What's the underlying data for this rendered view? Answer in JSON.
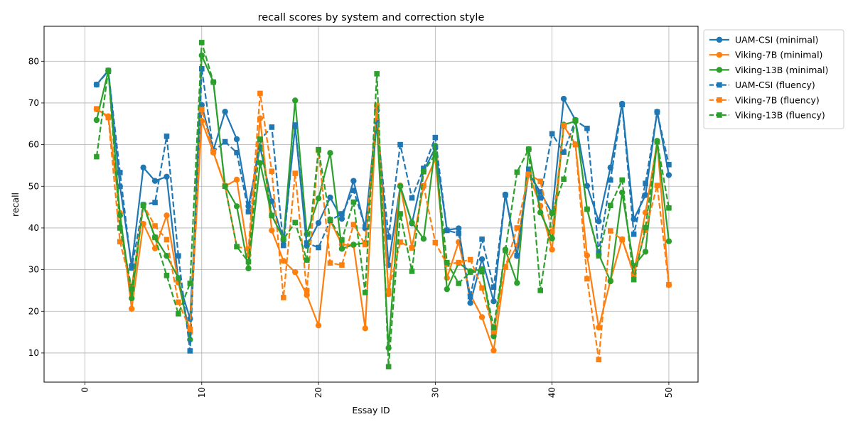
{
  "chart_data": {
    "type": "line",
    "title": "recall scores by system and correction style",
    "xlabel": "Essay ID",
    "ylabel": "recall",
    "xlim": [
      -3.5,
      52.5
    ],
    "ylim": [
      3.0,
      88.4
    ],
    "xticks": [
      0,
      10,
      20,
      30,
      40,
      50
    ],
    "yticks": [
      10,
      20,
      30,
      40,
      50,
      60,
      70,
      80
    ],
    "xtick_labels": [
      "0",
      "10",
      "20",
      "30",
      "40",
      "50"
    ],
    "ytick_labels": [
      "10",
      "20",
      "30",
      "40",
      "50",
      "60",
      "70",
      "80"
    ],
    "x_tick_rotation": 90,
    "grid": true,
    "legend_placement": "outside upper right",
    "x": [
      1,
      2,
      3,
      4,
      5,
      6,
      7,
      8,
      9,
      10,
      11,
      12,
      13,
      14,
      15,
      16,
      17,
      18,
      19,
      20,
      21,
      22,
      23,
      24,
      25,
      26,
      27,
      28,
      29,
      30,
      31,
      32,
      33,
      34,
      35,
      36,
      37,
      38,
      39,
      40,
      41,
      42,
      43,
      44,
      45,
      46,
      47,
      48,
      49,
      50
    ],
    "series": [
      {
        "name": "UAM-CSI (minimal)",
        "color": "#1f77b4",
        "linestyle": "solid",
        "marker": "circle",
        "values": [
          74.4,
          77.8,
          50.0,
          31.0,
          54.5,
          51.3,
          52.3,
          27.3,
          18.2,
          69.5,
          58.7,
          67.9,
          61.3,
          45.2,
          59.4,
          46.4,
          37.0,
          64.3,
          35.7,
          41.2,
          47.3,
          42.2,
          51.3,
          39.9,
          68.2,
          31.1,
          50.1,
          41.1,
          53.7,
          59.2,
          39.5,
          39.9,
          22.0,
          32.5,
          22.4,
          48.0,
          33.3,
          53.2,
          48.6,
          43.5,
          71.0,
          65.9,
          50.1,
          41.6,
          54.5,
          69.8,
          42.1,
          47.9,
          67.9,
          52.7
        ]
      },
      {
        "name": "Viking-7B (minimal)",
        "color": "#ff7f0e",
        "linestyle": "solid",
        "marker": "circle",
        "values": [
          68.5,
          66.8,
          43.6,
          20.6,
          41.0,
          35.1,
          43.0,
          26.9,
          14.9,
          65.7,
          58.1,
          50.0,
          51.6,
          33.5,
          66.3,
          39.4,
          32.1,
          29.4,
          23.9,
          16.6,
          41.8,
          36.0,
          35.9,
          15.9,
          69.4,
          24.1,
          50.2,
          35.3,
          50.1,
          56.5,
          28.0,
          36.6,
          24.0,
          18.6,
          10.6,
          30.7,
          35.7,
          53.0,
          45.3,
          34.8,
          64.5,
          60.1,
          33.4,
          16.1,
          27.4,
          37.3,
          29.1,
          43.7,
          60.6,
          26.3
        ]
      },
      {
        "name": "Viking-13B (minimal)",
        "color": "#2ca02c",
        "linestyle": "solid",
        "marker": "circle",
        "values": [
          65.9,
          77.7,
          43.0,
          23.1,
          45.6,
          37.8,
          33.3,
          28.0,
          13.2,
          81.4,
          75.0,
          50.1,
          45.2,
          30.3,
          55.6,
          43.0,
          37.4,
          70.6,
          38.5,
          47.1,
          58.0,
          35.0,
          36.0,
          36.4,
          65.3,
          11.2,
          50.0,
          41.3,
          37.4,
          59.7,
          25.3,
          31.6,
          29.6,
          30.1,
          14.0,
          34.8,
          26.8,
          58.9,
          43.7,
          37.5,
          64.8,
          65.6,
          44.5,
          33.7,
          27.2,
          48.5,
          30.9,
          34.3,
          60.9,
          36.8
        ]
      },
      {
        "name": "UAM-CSI (fluency)",
        "color": "#1f77b4",
        "linestyle": "dashed",
        "marker": "square",
        "values": [
          74.4,
          77.6,
          53.3,
          30.4,
          45.6,
          46.1,
          62.0,
          33.3,
          10.5,
          78.2,
          58.4,
          60.7,
          58.1,
          43.9,
          61.2,
          64.2,
          35.8,
          64.7,
          36.4,
          35.3,
          41.8,
          43.4,
          49.0,
          40.3,
          65.6,
          37.8,
          60.0,
          47.2,
          54.3,
          61.7,
          39.4,
          38.7,
          23.5,
          37.3,
          25.8,
          47.9,
          33.4,
          54.1,
          47.2,
          62.6,
          58.2,
          65.8,
          63.9,
          34.2,
          51.5,
          69.6,
          38.5,
          50.7,
          67.8,
          55.2
        ]
      },
      {
        "name": "Viking-7B (fluency)",
        "color": "#ff7f0e",
        "linestyle": "dashed",
        "marker": "square",
        "values": [
          68.6,
          66.5,
          36.7,
          25.5,
          45.5,
          40.5,
          37.2,
          22.2,
          15.7,
          68.4,
          58.3,
          50.1,
          35.5,
          35.0,
          72.3,
          53.6,
          23.3,
          53.1,
          25.0,
          58.6,
          31.6,
          31.1,
          40.8,
          36.0,
          69.3,
          24.9,
          36.6,
          35.2,
          50.1,
          36.5,
          31.3,
          31.7,
          32.4,
          25.6,
          15.1,
          30.6,
          40.0,
          52.9,
          51.2,
          39.2,
          64.6,
          60.0,
          27.8,
          8.4,
          39.3,
          37.2,
          28.8,
          39.4,
          50.2,
          26.4
        ]
      },
      {
        "name": "Viking-13B (fluency)",
        "color": "#2ca02c",
        "linestyle": "dashed",
        "marker": "square",
        "values": [
          57.1,
          77.8,
          40.0,
          25.4,
          45.4,
          37.7,
          28.6,
          19.4,
          26.7,
          84.5,
          75.0,
          50.0,
          35.5,
          31.9,
          61.3,
          43.0,
          37.3,
          41.3,
          32.3,
          58.8,
          42.0,
          37.1,
          46.2,
          24.5,
          77.0,
          6.7,
          43.4,
          29.6,
          53.5,
          57.7,
          31.7,
          26.7,
          29.4,
          29.5,
          16.1,
          34.6,
          53.4,
          58.9,
          25.0,
          43.7,
          51.7,
          65.8,
          44.5,
          33.3,
          45.4,
          51.5,
          27.6,
          40.1,
          60.7,
          44.8
        ]
      }
    ]
  }
}
